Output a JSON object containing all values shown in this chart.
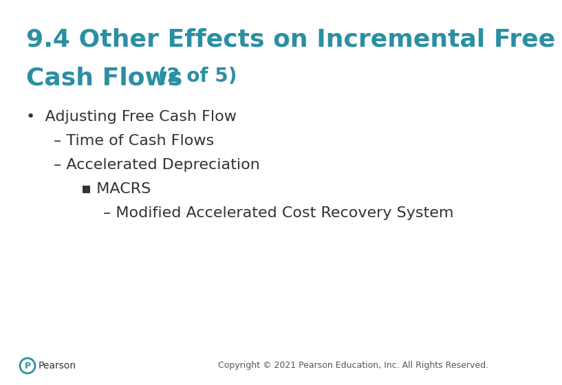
{
  "title_line1": "9.4 Other Effects on Incremental Free",
  "title_line2": "Cash Flows",
  "title_suffix": " (2 of 5)",
  "title_color": "#2b8fa3",
  "background_color": "#ffffff",
  "text_color": "#333333",
  "bullet1": "•  Adjusting Free Cash Flow",
  "sub1": "– Time of Cash Flows",
  "sub2": "– Accelerated Depreciation",
  "sub3": "▪ MACRS",
  "sub4": "– Modified Accelerated Cost Recovery System",
  "copyright": "Copyright © 2021 Pearson Education, Inc. All Rights Reserved.",
  "title_fontsize": 26,
  "title_suffix_fontsize": 20,
  "body_fontsize": 16,
  "copyright_fontsize": 9
}
